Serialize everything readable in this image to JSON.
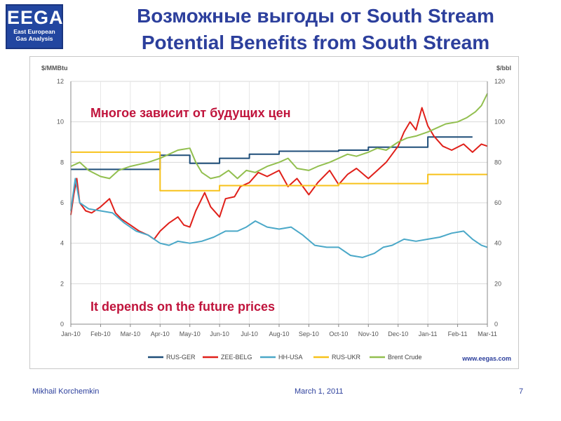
{
  "logo": {
    "letters": "EEGA",
    "line1": "East European",
    "line2": "Gas Analysis"
  },
  "title_ru": "Возможные выгоды от South Stream",
  "title_en": "Potential Benefits from South Stream",
  "footer": {
    "author": "Mikhail Korchemkin",
    "date": "March 1, 2011",
    "page": "7"
  },
  "colors": {
    "rus_ger": "#1f4e79",
    "zee_belg": "#e0201a",
    "hh_usa": "#4aa8c8",
    "rus_ukr": "#f7c21b",
    "brent": "#92bf4f",
    "annotation": "#c0143c"
  },
  "chart_data": {
    "type": "line",
    "ylabel": "$/MMBtu",
    "y2label": "$/bbl",
    "ylim": [
      0,
      12
    ],
    "y2lim": [
      0,
      120
    ],
    "yticks": [
      "0",
      "2",
      "4",
      "6",
      "8",
      "10",
      "12"
    ],
    "y2ticks": [
      "0",
      "20",
      "40",
      "60",
      "80",
      "100",
      "120"
    ],
    "categories": [
      "Jan-10",
      "Feb-10",
      "Mar-10",
      "Apr-10",
      "May-10",
      "Jun-10",
      "Jul-10",
      "Aug-10",
      "Sep-10",
      "Oct-10",
      "Nov-10",
      "Dec-10",
      "Jan-11",
      "Feb-11",
      "Mar-11"
    ],
    "grid": true,
    "legend": "bottom",
    "watermark": "www.eegas.com",
    "annotations": [
      "Многое зависит от будущих цен",
      "It depends on the future prices"
    ],
    "series": [
      {
        "name": "RUS-GER",
        "axis": "left",
        "step": true,
        "points": [
          [
            0,
            7.65
          ],
          [
            3,
            7.65
          ],
          [
            3,
            8.35
          ],
          [
            4,
            8.35
          ],
          [
            4,
            7.95
          ],
          [
            5,
            7.95
          ],
          [
            5,
            8.2
          ],
          [
            6,
            8.2
          ],
          [
            6,
            8.4
          ],
          [
            7,
            8.4
          ],
          [
            7,
            8.55
          ],
          [
            9,
            8.55
          ],
          [
            9,
            8.6
          ],
          [
            10,
            8.6
          ],
          [
            10,
            8.75
          ],
          [
            12,
            8.75
          ],
          [
            12,
            9.25
          ],
          [
            13.5,
            9.25
          ]
        ]
      },
      {
        "name": "ZEE-BELG",
        "axis": "left",
        "points": [
          [
            0,
            5.4
          ],
          [
            0.1,
            6.4
          ],
          [
            0.2,
            7.2
          ],
          [
            0.3,
            6.0
          ],
          [
            0.5,
            5.6
          ],
          [
            0.7,
            5.5
          ],
          [
            1.0,
            5.8
          ],
          [
            1.3,
            6.2
          ],
          [
            1.5,
            5.5
          ],
          [
            1.7,
            5.2
          ],
          [
            2.0,
            4.9
          ],
          [
            2.3,
            4.6
          ],
          [
            2.6,
            4.4
          ],
          [
            2.8,
            4.2
          ],
          [
            3.0,
            4.6
          ],
          [
            3.3,
            5.0
          ],
          [
            3.6,
            5.3
          ],
          [
            3.8,
            4.9
          ],
          [
            4.0,
            4.8
          ],
          [
            4.2,
            5.6
          ],
          [
            4.5,
            6.5
          ],
          [
            4.7,
            5.8
          ],
          [
            5.0,
            5.3
          ],
          [
            5.2,
            6.2
          ],
          [
            5.5,
            6.3
          ],
          [
            5.7,
            6.8
          ],
          [
            6.0,
            7.0
          ],
          [
            6.3,
            7.5
          ],
          [
            6.6,
            7.3
          ],
          [
            7.0,
            7.6
          ],
          [
            7.3,
            6.8
          ],
          [
            7.6,
            7.2
          ],
          [
            8.0,
            6.4
          ],
          [
            8.3,
            7.0
          ],
          [
            8.7,
            7.6
          ],
          [
            9.0,
            6.9
          ],
          [
            9.3,
            7.4
          ],
          [
            9.6,
            7.7
          ],
          [
            10.0,
            7.2
          ],
          [
            10.3,
            7.6
          ],
          [
            10.6,
            8.0
          ],
          [
            11.0,
            8.8
          ],
          [
            11.2,
            9.5
          ],
          [
            11.4,
            10.0
          ],
          [
            11.6,
            9.6
          ],
          [
            11.8,
            10.7
          ],
          [
            12.0,
            9.8
          ],
          [
            12.2,
            9.3
          ],
          [
            12.5,
            8.8
          ],
          [
            12.8,
            8.6
          ],
          [
            13.2,
            8.9
          ],
          [
            13.5,
            8.5
          ],
          [
            13.8,
            8.9
          ],
          [
            14.0,
            8.8
          ]
        ]
      },
      {
        "name": "HH-USA",
        "axis": "left",
        "points": [
          [
            0,
            5.6
          ],
          [
            0.15,
            7.2
          ],
          [
            0.3,
            6.0
          ],
          [
            0.6,
            5.7
          ],
          [
            1.0,
            5.6
          ],
          [
            1.4,
            5.5
          ],
          [
            1.8,
            5.0
          ],
          [
            2.2,
            4.6
          ],
          [
            2.6,
            4.4
          ],
          [
            3.0,
            4.0
          ],
          [
            3.3,
            3.9
          ],
          [
            3.6,
            4.1
          ],
          [
            4.0,
            4.0
          ],
          [
            4.4,
            4.1
          ],
          [
            4.8,
            4.3
          ],
          [
            5.2,
            4.6
          ],
          [
            5.6,
            4.6
          ],
          [
            5.9,
            4.8
          ],
          [
            6.2,
            5.1
          ],
          [
            6.6,
            4.8
          ],
          [
            7.0,
            4.7
          ],
          [
            7.4,
            4.8
          ],
          [
            7.8,
            4.4
          ],
          [
            8.2,
            3.9
          ],
          [
            8.6,
            3.8
          ],
          [
            9.0,
            3.8
          ],
          [
            9.4,
            3.4
          ],
          [
            9.8,
            3.3
          ],
          [
            10.2,
            3.5
          ],
          [
            10.5,
            3.8
          ],
          [
            10.8,
            3.9
          ],
          [
            11.2,
            4.2
          ],
          [
            11.6,
            4.1
          ],
          [
            12.0,
            4.2
          ],
          [
            12.4,
            4.3
          ],
          [
            12.8,
            4.5
          ],
          [
            13.2,
            4.6
          ],
          [
            13.5,
            4.2
          ],
          [
            13.8,
            3.9
          ],
          [
            14.0,
            3.8
          ]
        ]
      },
      {
        "name": "RUS-UKR",
        "axis": "left",
        "step": true,
        "points": [
          [
            0,
            8.5
          ],
          [
            3,
            8.5
          ],
          [
            3,
            6.6
          ],
          [
            5,
            6.6
          ],
          [
            5,
            6.85
          ],
          [
            9,
            6.85
          ],
          [
            9,
            6.95
          ],
          [
            12,
            6.95
          ],
          [
            12,
            7.4
          ],
          [
            14,
            7.4
          ]
        ]
      },
      {
        "name": "Brent Crude",
        "axis": "right",
        "points": [
          [
            0,
            78
          ],
          [
            0.3,
            80
          ],
          [
            0.6,
            76
          ],
          [
            1.0,
            73
          ],
          [
            1.3,
            72
          ],
          [
            1.6,
            76
          ],
          [
            2.0,
            78
          ],
          [
            2.3,
            79
          ],
          [
            2.6,
            80
          ],
          [
            3.0,
            82
          ],
          [
            3.3,
            84
          ],
          [
            3.6,
            86
          ],
          [
            4.0,
            87
          ],
          [
            4.2,
            80
          ],
          [
            4.4,
            75
          ],
          [
            4.7,
            72
          ],
          [
            5.0,
            73
          ],
          [
            5.3,
            76
          ],
          [
            5.6,
            72
          ],
          [
            5.9,
            76
          ],
          [
            6.2,
            75
          ],
          [
            6.6,
            78
          ],
          [
            7.0,
            80
          ],
          [
            7.3,
            82
          ],
          [
            7.6,
            77
          ],
          [
            8.0,
            76
          ],
          [
            8.3,
            78
          ],
          [
            8.7,
            80
          ],
          [
            9.0,
            82
          ],
          [
            9.3,
            84
          ],
          [
            9.6,
            83
          ],
          [
            10.0,
            85
          ],
          [
            10.3,
            87
          ],
          [
            10.6,
            86
          ],
          [
            11.0,
            90
          ],
          [
            11.3,
            92
          ],
          [
            11.6,
            93
          ],
          [
            12.0,
            95
          ],
          [
            12.3,
            97
          ],
          [
            12.6,
            99
          ],
          [
            13.0,
            100
          ],
          [
            13.3,
            102
          ],
          [
            13.6,
            105
          ],
          [
            13.8,
            108
          ],
          [
            14.0,
            114
          ]
        ]
      }
    ]
  }
}
